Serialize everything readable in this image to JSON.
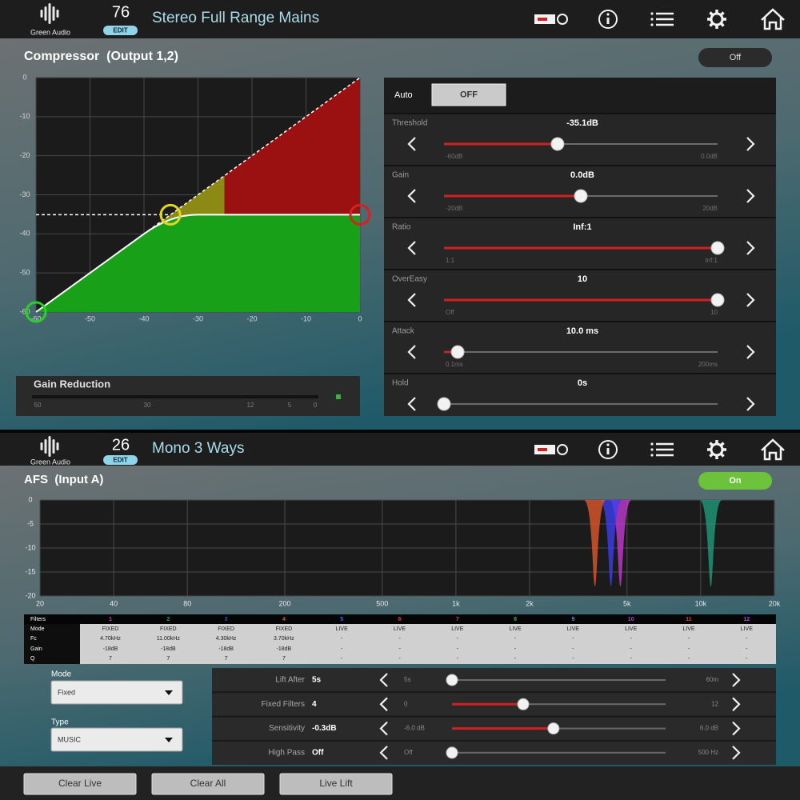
{
  "compressor": {
    "header": {
      "brand": "Green Audio",
      "preset_number": "76",
      "edit": "EDIT",
      "preset_name": "Stereo Full Range Mains"
    },
    "title": "Compressor  (Output 1,2)",
    "toggle": "Off",
    "graph": {
      "xlim": [
        -60,
        0
      ],
      "ylim": [
        -60,
        0
      ],
      "xticks": [
        -60,
        -50,
        -40,
        -30,
        -20,
        -10,
        0
      ],
      "yticks": [
        0,
        -10,
        -20,
        -30,
        -40,
        -50,
        -60
      ]
    },
    "gain_reduction": {
      "title": "Gain Reduction",
      "ticks": [
        "50",
        "30",
        "12",
        "5",
        "0"
      ]
    },
    "auto": {
      "label": "Auto",
      "button": "OFF"
    },
    "params": [
      {
        "name": "Threshold",
        "value": {
          "value": -35.1,
          "label": "-35.1dB"
        },
        "min": {
          "value": -60,
          "label": "-60dB"
        },
        "max": {
          "value": 0,
          "label": "0.0dB"
        }
      },
      {
        "name": "Gain",
        "value": {
          "value": 0,
          "label": "0.0dB"
        },
        "min": {
          "value": -20,
          "label": "-20dB"
        },
        "max": {
          "value": 20,
          "label": "20dB"
        }
      },
      {
        "name": "Ratio",
        "value": "Inf:1",
        "min": "1:1",
        "max": "Inf:1"
      },
      {
        "name": "OverEasy",
        "value": "10",
        "min": "Off",
        "max": "10"
      },
      {
        "name": "Attack",
        "value": "10.0 ms",
        "min": "0.1ms",
        "max": "200ms"
      },
      {
        "name": "Hold",
        "value": "0s"
      }
    ]
  },
  "afs": {
    "header": {
      "brand": "Green Audio",
      "preset_number": "26",
      "edit": "EDIT",
      "preset_name": "Mono 3 Ways"
    },
    "title": "AFS  (Input A)",
    "toggle": "On",
    "graph": {
      "xscale": "log",
      "xlim": [
        20,
        20000
      ],
      "ylim": [
        -20,
        0
      ],
      "xticks": [
        20,
        40,
        80,
        200,
        500,
        {
          "value": 1000,
          "label": "1k"
        },
        {
          "value": 2000,
          "label": "2k"
        },
        {
          "value": 5000,
          "label": "5k"
        },
        {
          "value": 10000,
          "label": "10k"
        },
        {
          "value": 20000,
          "label": "20k"
        }
      ],
      "yticks": [
        0,
        -5,
        -10,
        -15,
        -20
      ]
    },
    "table": {
      "header": "Filters",
      "row_labels": [
        "Mode",
        "Fc",
        "Gain",
        "Q"
      ],
      "filters": [
        {
          "number": "1",
          "color": "#c23ad0",
          "mode": "FIXED",
          "fc": {
            "value": 4700,
            "label": "4.70kHz"
          },
          "gain": {
            "value": -18,
            "label": "-18dB"
          },
          "q": "7"
        },
        {
          "number": "2",
          "color": "#1f9a7a",
          "mode": "FIXED",
          "fc": {
            "value": 11000,
            "label": "11.00kHz"
          },
          "gain": {
            "value": -18,
            "label": "-18dB"
          },
          "q": "7"
        },
        {
          "number": "3",
          "color": "#3d3df0",
          "mode": "FIXED",
          "fc": {
            "value": 4300,
            "label": "4.30kHz"
          },
          "gain": {
            "value": -18,
            "label": "-18dB"
          },
          "q": "7"
        },
        {
          "number": "4",
          "color": "#e0572a",
          "mode": "FIXED",
          "fc": {
            "value": 3700,
            "label": "3.70kHz"
          },
          "gain": {
            "value": -18,
            "label": "-18dB"
          },
          "q": "7"
        },
        {
          "number": "5",
          "color": "#4a62ff",
          "mode": "LIVE",
          "fc": "-",
          "gain": "-",
          "q": "-"
        },
        {
          "number": "6",
          "color": "#e23a3a",
          "mode": "LIVE",
          "fc": "-",
          "gain": "-",
          "q": "-"
        },
        {
          "number": "7",
          "color": "#e23a3a",
          "mode": "LIVE",
          "fc": "-",
          "gain": "-",
          "q": "-"
        },
        {
          "number": "8",
          "color": "#35b04a",
          "mode": "LIVE",
          "fc": "-",
          "gain": "-",
          "q": "-"
        },
        {
          "number": "9",
          "color": "#3f8cff",
          "mode": "LIVE",
          "fc": "-",
          "gain": "-",
          "q": "-"
        },
        {
          "number": "10",
          "color": "#b040e0",
          "mode": "LIVE",
          "fc": "-",
          "gain": "-",
          "q": "-"
        },
        {
          "number": "11",
          "color": "#e23a3a",
          "mode": "LIVE",
          "fc": "-",
          "gain": "-",
          "q": "-"
        },
        {
          "number": "12",
          "color": "#b040e0",
          "mode": "LIVE",
          "fc": "-",
          "gain": "-",
          "q": "-"
        }
      ]
    },
    "mode": {
      "label": "Mode",
      "value": "Fixed"
    },
    "type": {
      "label": "Type",
      "value": "MUSIC"
    },
    "params": [
      {
        "name": "Lift After",
        "value": "5s",
        "min": "5s",
        "max": "60m"
      },
      {
        "name": "Fixed Filters",
        "value": 4,
        "min": 0,
        "max": 12
      },
      {
        "name": "Sensitivity",
        "value": {
          "value": -0.3,
          "label": "-0.3dB"
        },
        "min": {
          "value": -6,
          "label": "-6.0 dB"
        },
        "max": {
          "value": 6,
          "label": "6.0 dB"
        }
      },
      {
        "name": "High Pass",
        "value": "Off",
        "min": "Off",
        "max": "500 Hz"
      }
    ],
    "buttons": [
      "Clear Live",
      "Clear All",
      "Live Lift"
    ]
  }
}
